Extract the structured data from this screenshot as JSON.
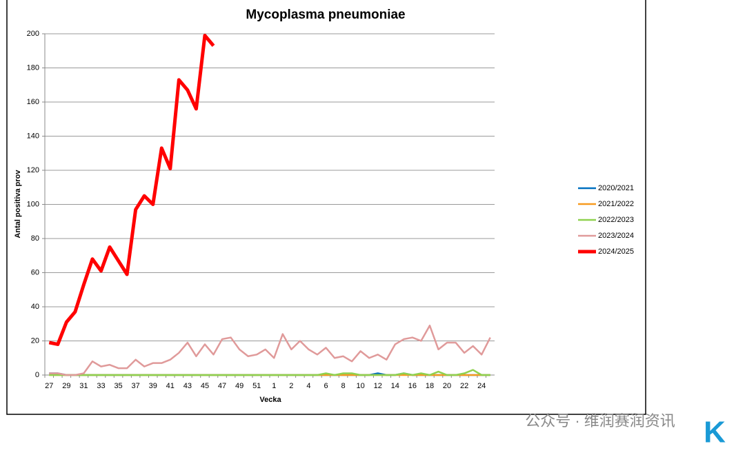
{
  "chart_data": {
    "type": "line",
    "title": "Mycoplasma pneumoniae",
    "x_label": "Vecka",
    "y_label": "Antal positiva prov",
    "categories": [
      "27",
      null,
      "29",
      null,
      "31",
      null,
      "33",
      null,
      "35",
      null,
      "37",
      null,
      "39",
      null,
      "41",
      null,
      "43",
      null,
      "45",
      null,
      "47",
      null,
      "49",
      null,
      "51",
      null,
      "1",
      null,
      "2",
      null,
      "4",
      null,
      "6",
      null,
      "8",
      null,
      "10",
      null,
      "12",
      null,
      "14",
      null,
      "16",
      null,
      "18",
      null,
      "20",
      null,
      "22",
      null,
      "24",
      null
    ],
    "ylim": [
      0,
      200
    ],
    "yticks": [
      0,
      20,
      40,
      60,
      80,
      100,
      120,
      140,
      160,
      180,
      200
    ],
    "grid": true,
    "legend": "right",
    "series": [
      {
        "name": "2020/2021",
        "color": "#0070c0",
        "width": 2.5,
        "values": [
          1,
          1,
          0,
          0,
          0,
          0,
          0,
          0,
          0,
          0,
          0,
          0,
          0,
          0,
          0,
          0,
          0,
          0,
          0,
          0,
          0,
          0,
          0,
          0,
          0,
          0,
          0,
          0,
          0,
          0,
          0,
          0,
          0,
          0,
          0,
          0,
          0,
          0,
          1,
          0,
          0,
          1,
          0,
          0,
          0,
          0,
          0,
          0,
          0,
          0,
          0,
          0
        ]
      },
      {
        "name": "2021/2022",
        "color": "#f79a1e",
        "width": 2.5,
        "values": [
          0,
          0,
          0,
          0,
          0,
          0,
          0,
          0,
          0,
          0,
          0,
          0,
          0,
          0,
          0,
          0,
          0,
          0,
          0,
          0,
          0,
          0,
          0,
          0,
          0,
          0,
          0,
          0,
          0,
          0,
          0,
          0,
          0,
          0,
          0,
          0,
          0,
          0,
          0,
          0,
          0,
          0,
          0,
          0,
          0,
          0,
          0,
          0,
          0,
          0,
          0,
          0
        ]
      },
      {
        "name": "2022/2023",
        "color": "#8fd14f",
        "width": 2.5,
        "values": [
          0,
          0,
          0,
          0,
          0,
          0,
          0,
          0,
          0,
          0,
          0,
          0,
          0,
          0,
          0,
          0,
          0,
          0,
          0,
          0,
          0,
          0,
          0,
          0,
          0,
          0,
          0,
          0,
          0,
          0,
          0,
          0,
          1,
          0,
          1,
          1,
          0,
          0,
          0,
          0,
          0,
          1,
          0,
          1,
          0,
          2,
          0,
          0,
          1,
          3,
          0,
          0
        ]
      },
      {
        "name": "2023/2024",
        "color": "#e09a9a",
        "width": 2.5,
        "values": [
          1,
          1,
          0,
          0,
          1,
          8,
          5,
          6,
          4,
          4,
          9,
          5,
          7,
          7,
          9,
          13,
          19,
          11,
          18,
          12,
          21,
          22,
          15,
          11,
          12,
          15,
          10,
          24,
          15,
          20,
          15,
          12,
          16,
          10,
          11,
          8,
          14,
          10,
          12,
          9,
          18,
          21,
          22,
          20,
          29,
          15,
          19,
          19,
          13,
          17,
          12,
          22
        ]
      },
      {
        "name": "2024/2025",
        "color": "#ff0000",
        "width": 5,
        "values": [
          19,
          18,
          31,
          37,
          53,
          68,
          61,
          75,
          67,
          59,
          97,
          105,
          100,
          133,
          121,
          173,
          167,
          156,
          199,
          193,
          null,
          null,
          null,
          null,
          null,
          null,
          null,
          null,
          null,
          null,
          null,
          null,
          null,
          null,
          null,
          null,
          null,
          null,
          null,
          null,
          null,
          null,
          null,
          null,
          null,
          null,
          null,
          null,
          null,
          null,
          null,
          null
        ]
      }
    ]
  },
  "watermark": "公众号 · 维润赛润资讯",
  "logo": "K"
}
